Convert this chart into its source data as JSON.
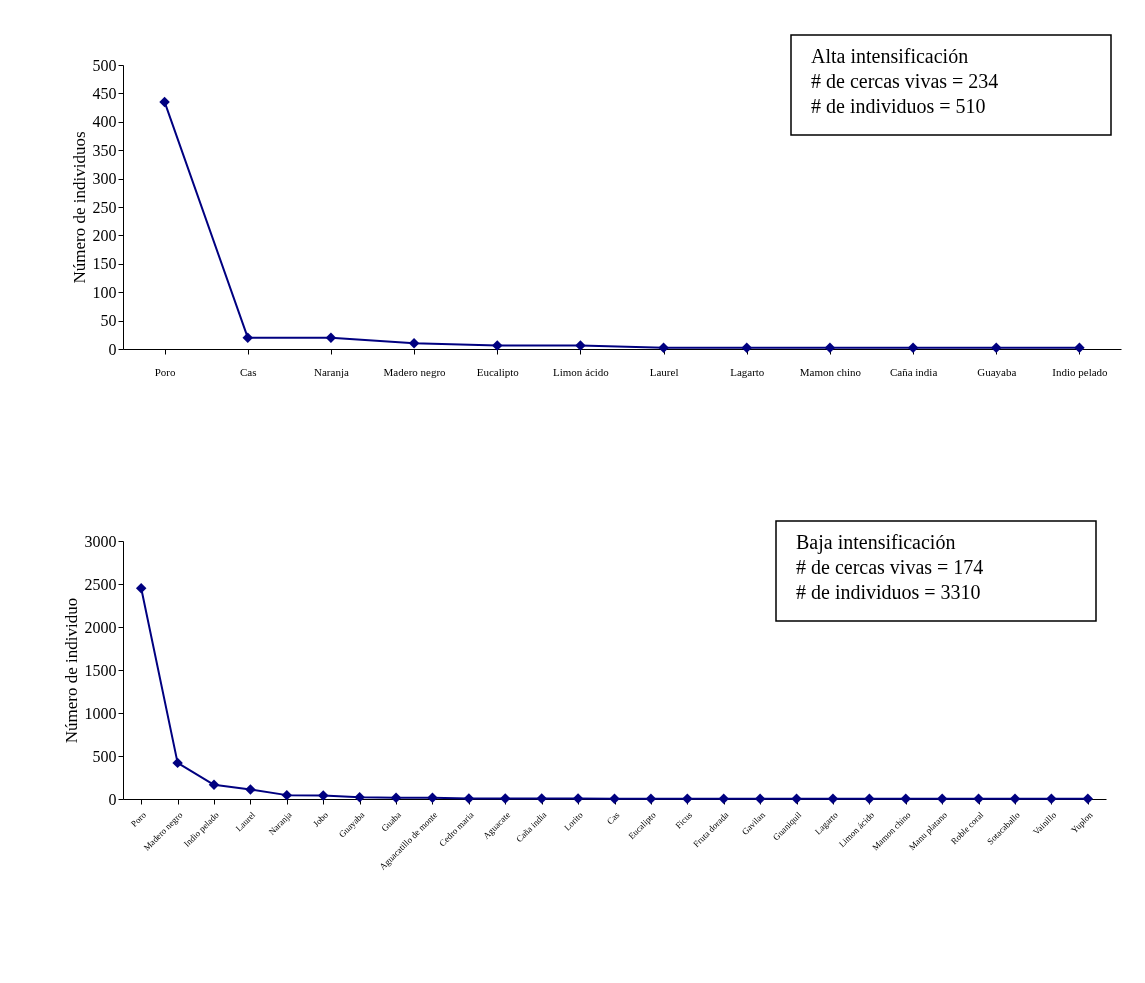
{
  "chart_data": [
    {
      "type": "line",
      "ylabel": "Número de individuos",
      "color": "#000080",
      "marker": "diamond",
      "grid": false,
      "categories": [
        "Poro",
        "Cas",
        "Naranja",
        "Madero negro",
        "Eucalipto",
        "Limon ácido",
        "Laurel",
        "Lagarto",
        "Mamon chino",
        "Caña india",
        "Guayaba",
        "Indio pelado"
      ],
      "values": [
        435,
        20,
        20,
        10,
        6,
        6,
        2,
        2,
        2,
        2,
        2,
        2
      ],
      "ylim": [
        0,
        500
      ],
      "yticks": [
        0,
        50,
        100,
        150,
        200,
        250,
        300,
        350,
        400,
        450,
        500
      ],
      "annotations": [
        "Alta intensificación",
        "# de cercas vivas = 234",
        "# de individuos = 510"
      ]
    },
    {
      "type": "line",
      "ylabel": "Número de individuo",
      "color": "#000080",
      "marker": "diamond",
      "grid": false,
      "categories": [
        "Poro",
        "Madero negro",
        "Indio pelado",
        "Laurel",
        "Naranja",
        "Jobo",
        "Guayaba",
        "Guaba",
        "Aguacatillo de monte",
        "Cedro maria",
        "Aguacate",
        "Caña india",
        "Lorito",
        "Cas",
        "Eucalipto",
        "Ficus",
        "Fruta dorada",
        "Gavilan",
        "Guaniquil",
        "Lagarto",
        "Limon ácido",
        "Mamon chino",
        "Manu platano",
        "Roble coral",
        "Sotacaballo",
        "Vainillo",
        "Yuplon"
      ],
      "values": [
        2450,
        420,
        165,
        110,
        45,
        40,
        20,
        15,
        15,
        5,
        5,
        5,
        5,
        2,
        2,
        2,
        2,
        2,
        2,
        2,
        2,
        2,
        2,
        2,
        2,
        2,
        2
      ],
      "ylim": [
        0,
        3000
      ],
      "yticks": [
        0,
        500,
        1000,
        1500,
        2000,
        2500,
        3000
      ],
      "annotations": [
        "Baja intensificación",
        "# de cercas vivas = 174",
        "# de individuos = 3310"
      ]
    }
  ]
}
